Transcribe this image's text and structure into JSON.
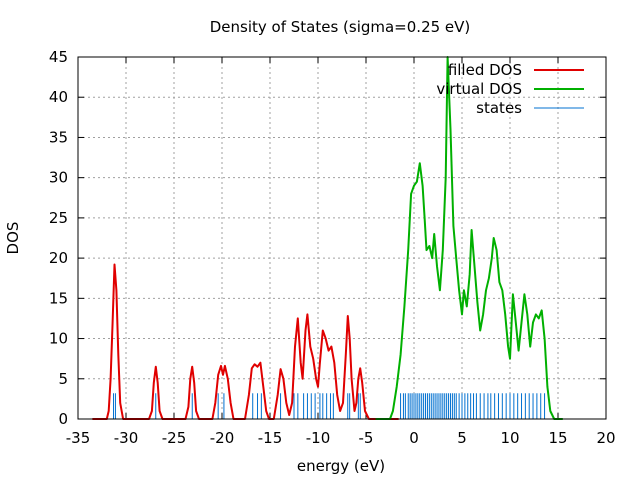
{
  "chart_data": {
    "type": "line",
    "title": "Density of States (sigma=0.25 eV)",
    "xlabel": "energy (eV)",
    "ylabel": "DOS",
    "xlim": [
      -35,
      20
    ],
    "ylim": [
      0,
      45
    ],
    "xticks": [
      -35,
      -30,
      -25,
      -20,
      -15,
      -10,
      -5,
      0,
      5,
      10,
      15,
      20
    ],
    "yticks": [
      0,
      5,
      10,
      15,
      20,
      25,
      30,
      35,
      40,
      45
    ],
    "grid": true,
    "legend_position": "top-right",
    "series": [
      {
        "name": "filled DOS",
        "color": "#e00000",
        "points": [
          [
            -33.5,
            0
          ],
          [
            -32.0,
            0
          ],
          [
            -31.8,
            1
          ],
          [
            -31.6,
            5
          ],
          [
            -31.4,
            12
          ],
          [
            -31.2,
            19.2
          ],
          [
            -31.0,
            16
          ],
          [
            -30.8,
            8
          ],
          [
            -30.6,
            2
          ],
          [
            -30.3,
            0
          ],
          [
            -27.6,
            0
          ],
          [
            -27.3,
            1
          ],
          [
            -27.1,
            4.5
          ],
          [
            -26.9,
            6.5
          ],
          [
            -26.7,
            4.5
          ],
          [
            -26.5,
            1
          ],
          [
            -26.2,
            0
          ],
          [
            -23.8,
            0
          ],
          [
            -23.5,
            1.5
          ],
          [
            -23.3,
            5
          ],
          [
            -23.1,
            6.5
          ],
          [
            -22.9,
            4.5
          ],
          [
            -22.7,
            1
          ],
          [
            -22.4,
            0
          ],
          [
            -21.0,
            0
          ],
          [
            -20.7,
            2
          ],
          [
            -20.4,
            5.5
          ],
          [
            -20.1,
            6.6
          ],
          [
            -19.9,
            5.5
          ],
          [
            -19.7,
            6.6
          ],
          [
            -19.4,
            5
          ],
          [
            -19.1,
            2
          ],
          [
            -18.8,
            0
          ],
          [
            -17.6,
            0
          ],
          [
            -17.2,
            3
          ],
          [
            -16.9,
            6.3
          ],
          [
            -16.6,
            6.8
          ],
          [
            -16.3,
            6.5
          ],
          [
            -16.0,
            7
          ],
          [
            -15.7,
            4
          ],
          [
            -15.4,
            1
          ],
          [
            -15.1,
            0
          ],
          [
            -14.6,
            0
          ],
          [
            -14.2,
            3
          ],
          [
            -13.9,
            6.2
          ],
          [
            -13.6,
            5
          ],
          [
            -13.3,
            2
          ],
          [
            -13.0,
            0.5
          ],
          [
            -12.7,
            2
          ],
          [
            -12.4,
            9
          ],
          [
            -12.1,
            12.5
          ],
          [
            -11.8,
            7
          ],
          [
            -11.6,
            5
          ],
          [
            -11.3,
            11
          ],
          [
            -11.1,
            13
          ],
          [
            -10.8,
            9
          ],
          [
            -10.5,
            7.5
          ],
          [
            -10.2,
            5
          ],
          [
            -10.0,
            4
          ],
          [
            -9.8,
            7
          ],
          [
            -9.5,
            11
          ],
          [
            -9.2,
            10
          ],
          [
            -8.9,
            8.5
          ],
          [
            -8.6,
            9
          ],
          [
            -8.3,
            7
          ],
          [
            -8.0,
            3
          ],
          [
            -7.7,
            1
          ],
          [
            -7.4,
            2
          ],
          [
            -7.1,
            8
          ],
          [
            -6.9,
            12.8
          ],
          [
            -6.7,
            10
          ],
          [
            -6.5,
            5
          ],
          [
            -6.2,
            1
          ],
          [
            -6.0,
            2
          ],
          [
            -5.8,
            5
          ],
          [
            -5.6,
            6.3
          ],
          [
            -5.4,
            4.5
          ],
          [
            -5.1,
            1
          ],
          [
            -4.7,
            0
          ],
          [
            -1.6,
            0
          ]
        ]
      },
      {
        "name": "virtual DOS",
        "color": "#00b000",
        "points": [
          [
            -4.0,
            0
          ],
          [
            -2.5,
            0
          ],
          [
            -2.2,
            1
          ],
          [
            -1.8,
            4
          ],
          [
            -1.4,
            8
          ],
          [
            -1.0,
            14
          ],
          [
            -0.6,
            21
          ],
          [
            -0.3,
            28
          ],
          [
            0.0,
            29
          ],
          [
            0.3,
            29.5
          ],
          [
            0.6,
            31.8
          ],
          [
            0.9,
            29
          ],
          [
            1.1,
            25
          ],
          [
            1.3,
            21
          ],
          [
            1.6,
            21.5
          ],
          [
            1.9,
            20
          ],
          [
            2.1,
            23
          ],
          [
            2.4,
            19
          ],
          [
            2.7,
            16
          ],
          [
            3.0,
            21
          ],
          [
            3.3,
            30
          ],
          [
            3.5,
            45
          ],
          [
            3.8,
            36
          ],
          [
            4.1,
            24
          ],
          [
            4.4,
            20
          ],
          [
            4.7,
            16
          ],
          [
            5.0,
            13
          ],
          [
            5.2,
            16
          ],
          [
            5.5,
            14
          ],
          [
            5.8,
            18
          ],
          [
            6.0,
            23.5
          ],
          [
            6.3,
            19
          ],
          [
            6.6,
            14.5
          ],
          [
            6.9,
            11
          ],
          [
            7.2,
            13
          ],
          [
            7.5,
            16
          ],
          [
            7.8,
            17.5
          ],
          [
            8.1,
            20
          ],
          [
            8.3,
            22.5
          ],
          [
            8.6,
            21
          ],
          [
            8.9,
            17
          ],
          [
            9.2,
            16
          ],
          [
            9.5,
            13
          ],
          [
            9.8,
            9
          ],
          [
            10.0,
            7.5
          ],
          [
            10.3,
            15.5
          ],
          [
            10.6,
            12
          ],
          [
            10.9,
            8.5
          ],
          [
            11.2,
            12
          ],
          [
            11.5,
            15.5
          ],
          [
            11.8,
            13
          ],
          [
            12.1,
            9
          ],
          [
            12.4,
            12
          ],
          [
            12.7,
            13
          ],
          [
            13.0,
            12.5
          ],
          [
            13.3,
            13.5
          ],
          [
            13.6,
            10
          ],
          [
            13.9,
            4
          ],
          [
            14.2,
            1
          ],
          [
            14.6,
            0
          ],
          [
            15.5,
            0
          ]
        ]
      }
    ],
    "states": {
      "name": "states",
      "color": "#0070d0",
      "height": 3.2,
      "energies": [
        -31.3,
        -31.1,
        -26.9,
        -23.1,
        -20.4,
        -19.8,
        -16.8,
        -16.3,
        -15.9,
        -13.9,
        -12.5,
        -12.1,
        -11.5,
        -11.1,
        -10.7,
        -10.3,
        -9.8,
        -9.5,
        -9.1,
        -8.7,
        -8.4,
        -6.9,
        -6.7,
        -5.8,
        -5.6,
        -1.4,
        -1.1,
        -0.9,
        -0.6,
        -0.4,
        -0.2,
        0.0,
        0.2,
        0.4,
        0.6,
        0.8,
        1.0,
        1.2,
        1.4,
        1.6,
        1.8,
        2.0,
        2.2,
        2.4,
        2.6,
        2.8,
        3.0,
        3.2,
        3.4,
        3.6,
        3.8,
        4.0,
        4.2,
        4.4,
        4.7,
        5.0,
        5.3,
        5.6,
        5.9,
        6.2,
        6.5,
        6.9,
        7.3,
        7.7,
        8.0,
        8.4,
        8.8,
        9.2,
        9.6,
        10.0,
        10.4,
        10.8,
        11.2,
        11.6,
        12.0,
        12.4,
        12.8,
        13.2,
        13.6
      ]
    }
  }
}
